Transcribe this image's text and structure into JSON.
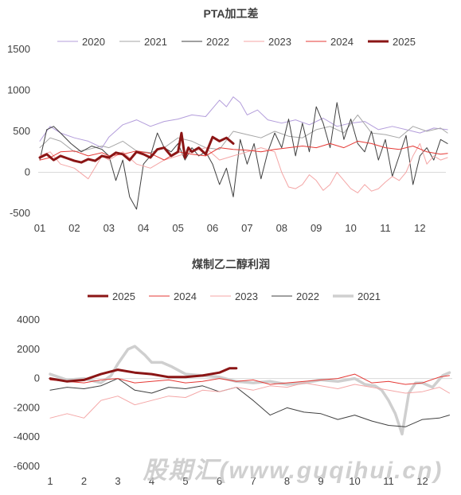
{
  "watermark": "股期汇(www.guqihui.cn)",
  "chart_data": [
    {
      "type": "line",
      "title": "PTA加工差",
      "legend_position": "top",
      "ylim": [
        -500,
        1500
      ],
      "yticks": [
        "-500",
        "0",
        "500",
        "1000",
        "1500"
      ],
      "xticks": [
        "01",
        "02",
        "03",
        "04",
        "05",
        "06",
        "07",
        "08",
        "09",
        "10",
        "11",
        "12"
      ],
      "grid": false,
      "series": [
        {
          "name": "2020",
          "color": "#b39ddb",
          "width": 1,
          "x": [
            0,
            0.3,
            0.6,
            1,
            1.4,
            1.8,
            2,
            2.4,
            2.8,
            3.2,
            3.6,
            4,
            4.4,
            4.8,
            5,
            5.2,
            5.4,
            5.6,
            5.8,
            6,
            6.3,
            6.6,
            7,
            7.4,
            7.8,
            8.2,
            8.6,
            9,
            9.4,
            9.8,
            10.2,
            10.6,
            11,
            11.4,
            11.8
          ],
          "y": [
            380,
            560,
            480,
            420,
            380,
            300,
            430,
            580,
            640,
            560,
            620,
            650,
            700,
            680,
            780,
            880,
            800,
            920,
            850,
            700,
            760,
            640,
            600,
            640,
            580,
            660,
            560,
            600,
            620,
            520,
            560,
            520,
            480,
            540,
            520
          ]
        },
        {
          "name": "2021",
          "color": "#a6a6a6",
          "width": 1,
          "x": [
            0,
            0.3,
            0.6,
            1,
            1.4,
            1.8,
            2,
            2.4,
            2.8,
            3.2,
            3.6,
            4,
            4.4,
            4.8,
            5.2,
            5.6,
            6,
            6.4,
            6.8,
            7.2,
            7.6,
            8,
            8.4,
            8.8,
            9.2,
            9.6,
            10,
            10.4,
            10.8,
            11.2,
            11.6,
            11.8
          ],
          "y": [
            300,
            420,
            380,
            250,
            280,
            320,
            300,
            380,
            260,
            240,
            300,
            420,
            380,
            300,
            280,
            500,
            460,
            420,
            500,
            440,
            420,
            520,
            560,
            480,
            700,
            480,
            460,
            420,
            560,
            500,
            540,
            480
          ]
        },
        {
          "name": "2022",
          "color": "#404040",
          "width": 1,
          "x": [
            0,
            0.2,
            0.4,
            0.6,
            0.9,
            1.2,
            1.5,
            1.8,
            2,
            2.2,
            2.4,
            2.6,
            2.8,
            3,
            3.2,
            3.4,
            3.6,
            3.8,
            4,
            4.2,
            4.4,
            4.6,
            4.8,
            5,
            5.2,
            5.4,
            5.6,
            5.8,
            6,
            6.2,
            6.4,
            6.6,
            6.8,
            7,
            7.2,
            7.4,
            7.6,
            7.8,
            8,
            8.2,
            8.4,
            8.6,
            8.8,
            9,
            9.2,
            9.4,
            9.6,
            9.8,
            10,
            10.2,
            10.4,
            10.6,
            10.8,
            11,
            11.2,
            11.4,
            11.6,
            11.8
          ],
          "y": [
            150,
            520,
            560,
            480,
            350,
            250,
            320,
            280,
            200,
            -100,
            150,
            -300,
            -450,
            100,
            200,
            480,
            300,
            250,
            350,
            150,
            300,
            200,
            250,
            100,
            -150,
            50,
            -300,
            400,
            100,
            350,
            -80,
            250,
            480,
            300,
            650,
            200,
            600,
            250,
            800,
            600,
            300,
            850,
            400,
            650,
            350,
            250,
            500,
            150,
            400,
            -50,
            200,
            450,
            -150,
            200,
            300,
            150,
            400,
            350
          ]
        },
        {
          "name": "2023",
          "color": "#f4a6a6",
          "width": 1,
          "x": [
            0,
            0.3,
            0.6,
            1,
            1.4,
            1.8,
            2,
            2.4,
            2.8,
            3.2,
            3.6,
            4,
            4.4,
            4.8,
            5.2,
            5.6,
            6,
            6.4,
            6.8,
            7,
            7.2,
            7.4,
            7.6,
            7.8,
            8,
            8.2,
            8.4,
            8.6,
            8.8,
            9,
            9.2,
            9.4,
            9.6,
            9.8,
            10,
            10.2,
            10.4,
            10.6,
            10.8,
            11,
            11.2,
            11.4,
            11.6,
            11.8
          ],
          "y": [
            200,
            250,
            100,
            50,
            -80,
            200,
            150,
            250,
            100,
            50,
            150,
            200,
            250,
            300,
            150,
            200,
            250,
            300,
            250,
            0,
            -180,
            -200,
            -150,
            -30,
            -100,
            -220,
            -150,
            0,
            -100,
            -200,
            -250,
            -150,
            -230,
            -200,
            -120,
            -50,
            -100,
            0,
            200,
            350,
            100,
            200,
            150,
            180
          ]
        },
        {
          "name": "2024",
          "color": "#e53935",
          "width": 1,
          "x": [
            0,
            0.3,
            0.6,
            1,
            1.4,
            1.8,
            2,
            2.4,
            2.8,
            3.2,
            3.6,
            4,
            4.4,
            4.8,
            5.2,
            5.6,
            6,
            6.4,
            6.8,
            7.2,
            7.6,
            8,
            8.4,
            8.8,
            9.2,
            9.6,
            10,
            10.4,
            10.8,
            11.2,
            11.6,
            11.8
          ],
          "y": [
            150,
            180,
            250,
            260,
            200,
            240,
            200,
            220,
            260,
            230,
            150,
            250,
            220,
            200,
            300,
            280,
            270,
            250,
            280,
            300,
            320,
            300,
            350,
            300,
            380,
            350,
            300,
            280,
            320,
            250,
            220,
            230
          ]
        },
        {
          "name": "2025",
          "color": "#8b1515",
          "width": 3,
          "x": [
            0,
            0.2,
            0.4,
            0.6,
            0.8,
            1,
            1.2,
            1.4,
            1.6,
            1.8,
            2,
            2.2,
            2.4,
            2.6,
            2.8,
            3,
            3.2,
            3.4,
            3.6,
            3.8,
            4,
            4.1,
            4.2,
            4.3,
            4.4,
            4.6,
            4.8,
            5,
            5.2,
            5.4,
            5.6
          ],
          "y": [
            180,
            220,
            150,
            200,
            170,
            140,
            120,
            160,
            140,
            200,
            180,
            240,
            220,
            150,
            250,
            220,
            180,
            280,
            300,
            200,
            250,
            480,
            180,
            300,
            250,
            300,
            220,
            430,
            380,
            420,
            350
          ]
        }
      ]
    },
    {
      "type": "line",
      "title": "煤制乙二醇利润",
      "legend_position": "top",
      "ylim": [
        -6000,
        4000
      ],
      "yticks": [
        "-6000",
        "-4000",
        "-2000",
        "0",
        "2000",
        "4000"
      ],
      "xticks": [
        "1",
        "2",
        "3",
        "4",
        "5",
        "6",
        "7",
        "8",
        "9",
        "10",
        "11",
        "12"
      ],
      "grid": false,
      "series": [
        {
          "name": "2025",
          "color": "#8b1515",
          "width": 3,
          "x": [
            0,
            0.5,
            1,
            1.5,
            2,
            2.5,
            3,
            3.5,
            4,
            4.5,
            5,
            5.3,
            5.5
          ],
          "y": [
            0,
            -200,
            -100,
            300,
            600,
            400,
            300,
            100,
            100,
            200,
            400,
            700,
            700
          ]
        },
        {
          "name": "2024",
          "color": "#e53935",
          "width": 1,
          "x": [
            0,
            0.5,
            1,
            1.5,
            2,
            2.5,
            3,
            3.5,
            4,
            4.5,
            5,
            5.5,
            6,
            6.5,
            7,
            7.5,
            8,
            8.5,
            9,
            9.5,
            10,
            10.5,
            11,
            11.5,
            11.8
          ],
          "y": [
            -100,
            -200,
            -300,
            -100,
            0,
            -300,
            -200,
            -100,
            -300,
            -200,
            0,
            -200,
            -100,
            -400,
            -300,
            -200,
            -100,
            0,
            300,
            -300,
            -200,
            -400,
            -300,
            100,
            200
          ]
        },
        {
          "name": "2023",
          "color": "#f4a6a6",
          "width": 1,
          "x": [
            0,
            0.5,
            1,
            1.5,
            2,
            2.5,
            3,
            3.5,
            4,
            4.5,
            5,
            5.5,
            6,
            6.5,
            7,
            7.5,
            8,
            8.5,
            9,
            9.5,
            10,
            10.5,
            11,
            11.5,
            11.8
          ],
          "y": [
            -2700,
            -2400,
            -2700,
            -1500,
            -1200,
            -1800,
            -1500,
            -1200,
            -1300,
            -800,
            -900,
            -600,
            -800,
            -500,
            -600,
            -300,
            -500,
            -700,
            -400,
            -600,
            -800,
            -1000,
            -900,
            -600,
            -1000
          ]
        },
        {
          "name": "2022",
          "color": "#404040",
          "width": 1,
          "x": [
            0,
            0.5,
            1,
            1.5,
            2,
            2.5,
            3,
            3.5,
            4,
            4.5,
            5,
            5.5,
            6,
            6.5,
            7,
            7.5,
            8,
            8.5,
            9,
            9.5,
            10,
            10.5,
            11,
            11.5,
            11.8
          ],
          "y": [
            -800,
            -600,
            -700,
            -500,
            0,
            -800,
            -1000,
            -600,
            -700,
            -500,
            -900,
            -600,
            -1500,
            -2500,
            -2000,
            -2300,
            -2400,
            -2800,
            -2500,
            -2900,
            -3200,
            -3300,
            -2800,
            -2700,
            -2500
          ]
        },
        {
          "name": "2021",
          "color": "#cfcfcf",
          "width": 3.5,
          "x": [
            0,
            0.5,
            1,
            1.5,
            1.8,
            2,
            2.3,
            2.5,
            2.8,
            3,
            3.3,
            3.6,
            4,
            4.5,
            5,
            5.5,
            6,
            6.5,
            7,
            7.5,
            8,
            8.5,
            9,
            9.3,
            9.6,
            9.8,
            10,
            10.2,
            10.4,
            10.6,
            10.8,
            11,
            11.3,
            11.6,
            11.8
          ],
          "y": [
            300,
            -100,
            0,
            -300,
            200,
            1000,
            2000,
            2200,
            1600,
            1100,
            1100,
            800,
            300,
            200,
            100,
            -200,
            -300,
            -200,
            -400,
            -300,
            -100,
            -200,
            0,
            -400,
            -500,
            -800,
            -1500,
            -2400,
            -3800,
            -1000,
            -300,
            -300,
            -600,
            200,
            400
          ]
        }
      ]
    }
  ]
}
